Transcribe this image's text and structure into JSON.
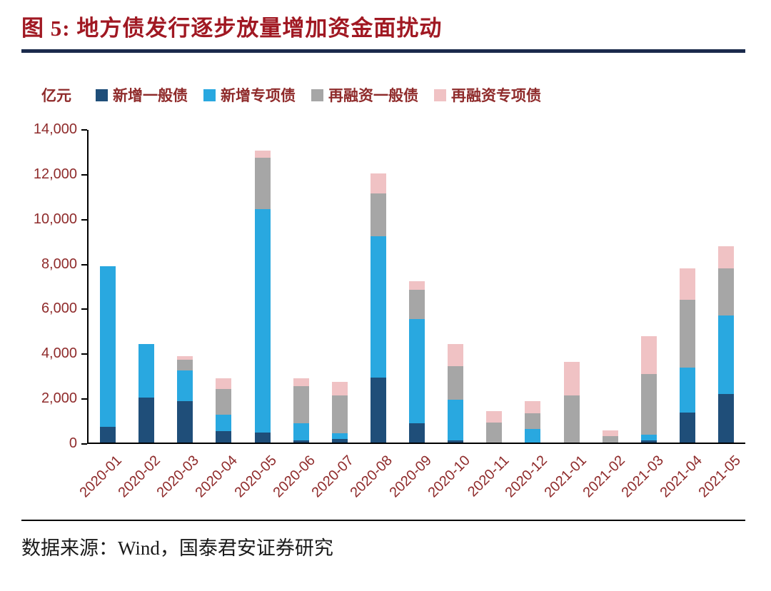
{
  "header": {
    "title": "图 5:  地方债发行逐步放量增加资金面扰动"
  },
  "footer": {
    "source": "数据来源：Wind，国泰君安证券研究"
  },
  "colors": {
    "title_text": "#a01822",
    "title_rule": "#1b2a4c",
    "axis_text": "#8f2b2b",
    "axis_line": "#000000",
    "new_general_bond": "#1f4e79",
    "new_special_bond": "#29a8e0",
    "refinancing_general_bond": "#a6a6a6",
    "refinancing_special_bond": "#f0c2c4"
  },
  "chart_data": {
    "type": "bar",
    "stacked": true,
    "title": "图 5:  地方债发行逐步放量增加资金面扰动",
    "unit": "亿元",
    "legend_position": "top",
    "grid": false,
    "categories": [
      "2020-01",
      "2020-02",
      "2020-03",
      "2020-04",
      "2020-05",
      "2020-06",
      "2020-07",
      "2020-08",
      "2020-09",
      "2020-10",
      "2020-11",
      "2020-12",
      "2021-01",
      "2021-02",
      "2021-03",
      "2021-04",
      "2021-05"
    ],
    "series": [
      {
        "name": "新增一般债",
        "color": "#1f4e79",
        "values": [
          700,
          2000,
          1850,
          500,
          450,
          100,
          150,
          2900,
          850,
          100,
          0,
          0,
          0,
          0,
          100,
          1350,
          2150
        ]
      },
      {
        "name": "新增专项债",
        "color": "#29a8e0",
        "values": [
          7150,
          2400,
          1350,
          750,
          9950,
          750,
          250,
          6300,
          4650,
          1800,
          0,
          600,
          0,
          0,
          250,
          2000,
          3500
        ]
      },
      {
        "name": "再融资一般债",
        "color": "#a6a6a6",
        "values": [
          0,
          0,
          500,
          1150,
          2300,
          1650,
          1700,
          1900,
          1300,
          1500,
          900,
          700,
          2100,
          300,
          2700,
          3000,
          2100
        ]
      },
      {
        "name": "再融资专项债",
        "color": "#f0c2c4",
        "values": [
          0,
          0,
          150,
          450,
          300,
          350,
          600,
          900,
          400,
          1000,
          500,
          550,
          1500,
          250,
          1700,
          1400,
          1000
        ]
      }
    ],
    "ylim": [
      0,
      14000
    ],
    "yticks": [
      "0",
      "2,000",
      "4,000",
      "6,000",
      "8,000",
      "10,000",
      "12,000",
      "14,000"
    ],
    "xlabel": "",
    "ylabel": "亿元"
  }
}
